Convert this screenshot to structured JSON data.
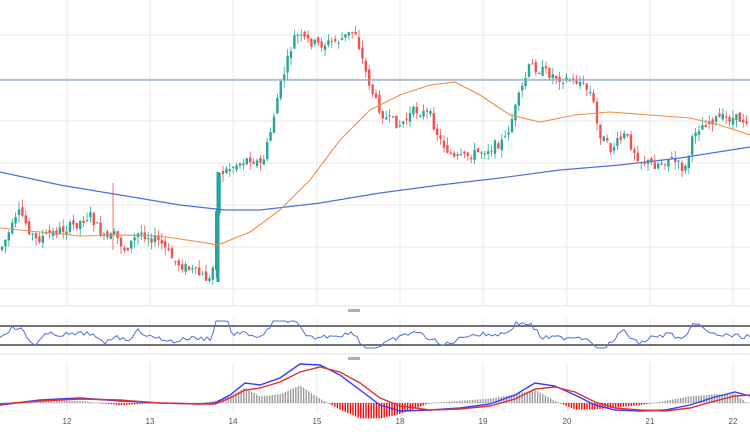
{
  "chart_data": {
    "type": "candlestick",
    "title": "",
    "xlabel": "",
    "ylabel": "",
    "x_ticks": [
      "12",
      "13",
      "14",
      "15",
      "18",
      "19",
      "20",
      "21",
      "22"
    ],
    "panels": [
      "price",
      "rsi",
      "macd"
    ],
    "grid": true,
    "colors": {
      "up": "#26a69a",
      "down": "#ef5350",
      "ma_fast": "#f28c4a",
      "ma_slow": "#4f6fe0",
      "hline": "#8fa7c4",
      "rsi": "#4f6fe0",
      "macd": "#3a3aff",
      "signal": "#e03030",
      "hist_pos": "#999999",
      "hist_neg": "#ff0000",
      "grid": "#e8e8e8"
    }
  }
}
